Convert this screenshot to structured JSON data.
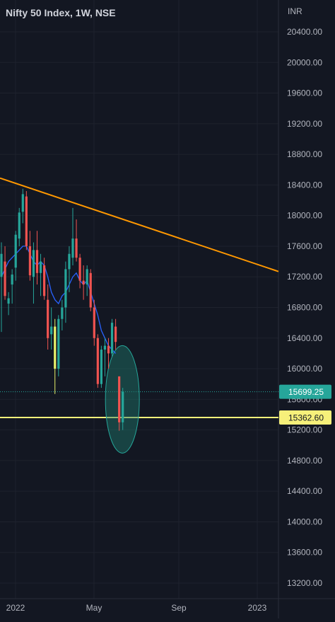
{
  "header": {
    "title": "Nifty 50 Index, 1W, NSE",
    "currency": "INR"
  },
  "chart_data": {
    "type": "candlestick",
    "title": "Nifty 50 Index, 1W, NSE",
    "ylim": [
      13050,
      20800
    ],
    "y_ticks": [
      20400,
      20000,
      19600,
      19200,
      18800,
      18400,
      18000,
      17600,
      17200,
      16800,
      16400,
      16000,
      15600,
      15200,
      14800,
      14400,
      14000,
      13600,
      13200
    ],
    "y_tick_labels": [
      "20400.00",
      "20000.00",
      "19600.00",
      "19200.00",
      "18800.00",
      "18400.00",
      "18000.00",
      "17600.00",
      "17200.00",
      "16800.00",
      "16400.00",
      "16000.00",
      "15600.00",
      "15200.00",
      "14800.00",
      "14400.00",
      "14000.00",
      "13600.00",
      "13200.00"
    ],
    "x_labels": [
      "2022",
      "May",
      "Sep",
      "2023"
    ],
    "grid": true,
    "candles": [
      {
        "o": 17200,
        "h": 17650,
        "l": 16480,
        "c": 17500
      },
      {
        "o": 17400,
        "h": 17600,
        "l": 16900,
        "c": 16950
      },
      {
        "o": 16850,
        "h": 17000,
        "l": 16700,
        "c": 16920
      },
      {
        "o": 17100,
        "h": 17300,
        "l": 16850,
        "c": 17230
      },
      {
        "o": 17320,
        "h": 17800,
        "l": 17150,
        "c": 17750
      },
      {
        "o": 17700,
        "h": 18100,
        "l": 17600,
        "c": 18040
      },
      {
        "o": 18050,
        "h": 18350,
        "l": 17900,
        "c": 18280
      },
      {
        "o": 18250,
        "h": 18320,
        "l": 17550,
        "c": 17600
      },
      {
        "o": 17600,
        "h": 17800,
        "l": 17150,
        "c": 17220
      },
      {
        "o": 17200,
        "h": 17650,
        "l": 16850,
        "c": 17550
      },
      {
        "o": 17550,
        "h": 17800,
        "l": 17100,
        "c": 17250
      },
      {
        "o": 17250,
        "h": 17500,
        "l": 16950,
        "c": 17400
      },
      {
        "o": 17350,
        "h": 17450,
        "l": 16900,
        "c": 16950
      },
      {
        "o": 16900,
        "h": 17100,
        "l": 16250,
        "c": 16400
      },
      {
        "o": 16450,
        "h": 16800,
        "l": 16250,
        "c": 16550
      },
      {
        "o": 16550,
        "h": 16650,
        "l": 15670,
        "c": 16000
      },
      {
        "o": 16000,
        "h": 16700,
        "l": 15900,
        "c": 16650
      },
      {
        "o": 16650,
        "h": 16900,
        "l": 16500,
        "c": 16800
      },
      {
        "o": 16800,
        "h": 17400,
        "l": 16600,
        "c": 17300
      },
      {
        "o": 17300,
        "h": 17600,
        "l": 17000,
        "c": 17500
      },
      {
        "o": 17450,
        "h": 18100,
        "l": 17350,
        "c": 17700
      },
      {
        "o": 17700,
        "h": 17950,
        "l": 17400,
        "c": 17450
      },
      {
        "o": 17450,
        "h": 17500,
        "l": 17050,
        "c": 17150
      },
      {
        "o": 17150,
        "h": 17350,
        "l": 16900,
        "c": 17100
      },
      {
        "o": 17100,
        "h": 17350,
        "l": 16950,
        "c": 17300
      },
      {
        "o": 17250,
        "h": 17300,
        "l": 16750,
        "c": 16800
      },
      {
        "o": 16800,
        "h": 16900,
        "l": 16300,
        "c": 16400
      },
      {
        "o": 16400,
        "h": 16450,
        "l": 15750,
        "c": 15800
      },
      {
        "o": 15800,
        "h": 16300,
        "l": 15750,
        "c": 16250
      },
      {
        "o": 16250,
        "h": 16400,
        "l": 15900,
        "c": 16300
      },
      {
        "o": 16300,
        "h": 16400,
        "l": 16000,
        "c": 16200
      },
      {
        "o": 16200,
        "h": 16650,
        "l": 16150,
        "c": 16600
      },
      {
        "o": 16550,
        "h": 16650,
        "l": 16250,
        "c": 16350
      },
      {
        "o": 15900,
        "h": 15900,
        "l": 15190,
        "c": 15300
      },
      {
        "o": 15300,
        "h": 15750,
        "l": 15200,
        "c": 15700
      }
    ],
    "highlight_candle_index": 15,
    "moving_average": {
      "color": "#2962ff",
      "values": [
        17200,
        17300,
        17400,
        17450,
        17500,
        17550,
        17600,
        17600,
        17500,
        17400,
        17350,
        17400,
        17350,
        17200,
        17000,
        16900,
        16850,
        16950,
        17000,
        17100,
        17200,
        17250,
        17150,
        17100,
        17150,
        17000,
        16850,
        16700,
        16500,
        16400,
        16300,
        16250,
        16200,
        null,
        null
      ]
    },
    "trendline": {
      "color": "#ff9800",
      "start_price": 18490,
      "end_price": 17270
    },
    "horizontal_line": {
      "value": 15362.6,
      "label": "15362.60",
      "color": "#f6f07a"
    },
    "current_price": {
      "value": 15699.25,
      "label": "15699.25",
      "color": "#26a69a"
    },
    "candle_colors": {
      "up": "#26a69a",
      "down": "#ef5350",
      "highlight": "#e8f06a"
    },
    "ellipse_color": "#1f7a6c"
  }
}
